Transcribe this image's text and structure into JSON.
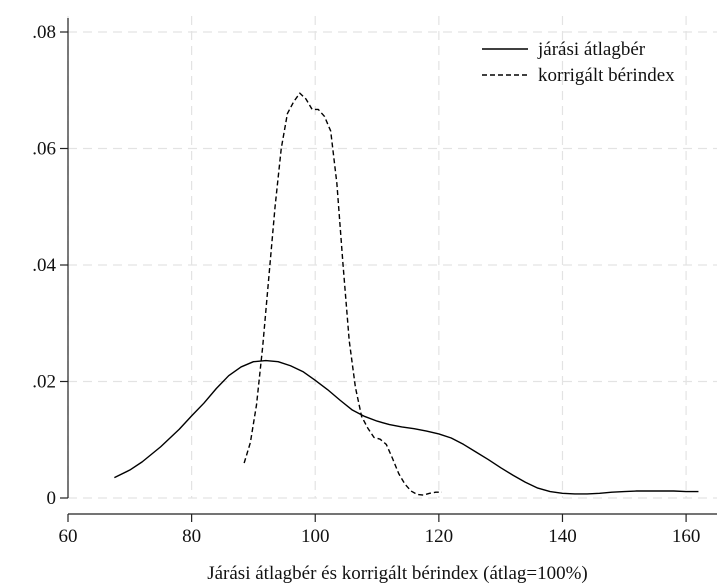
{
  "chart_data": {
    "type": "line",
    "title": "",
    "xlabel": "Járási átlagbér és korrigált bérindex (átlag=100%)",
    "ylabel": "",
    "xlim": [
      60,
      165
    ],
    "ylim": [
      0,
      0.08
    ],
    "x_ticks": [
      60,
      80,
      100,
      120,
      140,
      160
    ],
    "x_tick_labels": [
      "60",
      "80",
      "100",
      "120",
      "140",
      "160"
    ],
    "y_ticks": [
      0,
      0.02,
      0.04,
      0.06,
      0.08
    ],
    "y_tick_labels": [
      "0",
      ".02",
      ".04",
      ".06",
      ".08"
    ],
    "grid": true,
    "legend_position": "top-right",
    "series": [
      {
        "name": "járási átlagbér",
        "style": "solid",
        "color": "#000000",
        "x": [
          67.5,
          70,
          72,
          75,
          78,
          80,
          82,
          84,
          86,
          88,
          90,
          92,
          94,
          96,
          98,
          100,
          102,
          104,
          106,
          108,
          110,
          112,
          114,
          116,
          118,
          120,
          122,
          124,
          126,
          128,
          130,
          132,
          134,
          136,
          138,
          140,
          142,
          144,
          146,
          148,
          150,
          152,
          154,
          156,
          158,
          160,
          162
        ],
        "y": [
          0.0035,
          0.0048,
          0.0062,
          0.0088,
          0.0118,
          0.0141,
          0.0163,
          0.0188,
          0.021,
          0.0225,
          0.0234,
          0.0236,
          0.0234,
          0.0227,
          0.0217,
          0.0202,
          0.0186,
          0.0168,
          0.0151,
          0.014,
          0.0132,
          0.0126,
          0.0122,
          0.0119,
          0.0115,
          0.011,
          0.0103,
          0.0092,
          0.0079,
          0.0066,
          0.0052,
          0.0039,
          0.0027,
          0.0017,
          0.0011,
          0.0008,
          0.0007,
          0.0007,
          0.0008,
          0.001,
          0.0011,
          0.0012,
          0.0012,
          0.0012,
          0.0012,
          0.0011,
          0.0011
        ]
      },
      {
        "name": "korrigált bérindex",
        "style": "dashed",
        "color": "#000000",
        "x": [
          88.5,
          89.5,
          90.5,
          91.5,
          92.5,
          93.5,
          94.5,
          95.5,
          96.5,
          97.5,
          98.5,
          99.5,
          100.5,
          101.5,
          102.5,
          103.5,
          104.5,
          105.5,
          106.5,
          107.5,
          108.5,
          109.5,
          110.5,
          111.5,
          112.5,
          113.5,
          114.5,
          115.5,
          116.5,
          117.5,
          118.5,
          119.5,
          120.5
        ],
        "y": [
          0.006,
          0.0095,
          0.016,
          0.026,
          0.038,
          0.05,
          0.06,
          0.066,
          0.068,
          0.0695,
          0.0685,
          0.0667,
          0.0667,
          0.0655,
          0.063,
          0.054,
          0.04,
          0.027,
          0.019,
          0.014,
          0.012,
          0.0104,
          0.0101,
          0.0092,
          0.0068,
          0.0042,
          0.0024,
          0.0012,
          0.0006,
          0.0005,
          0.0008,
          0.001,
          0.001
        ]
      }
    ]
  }
}
